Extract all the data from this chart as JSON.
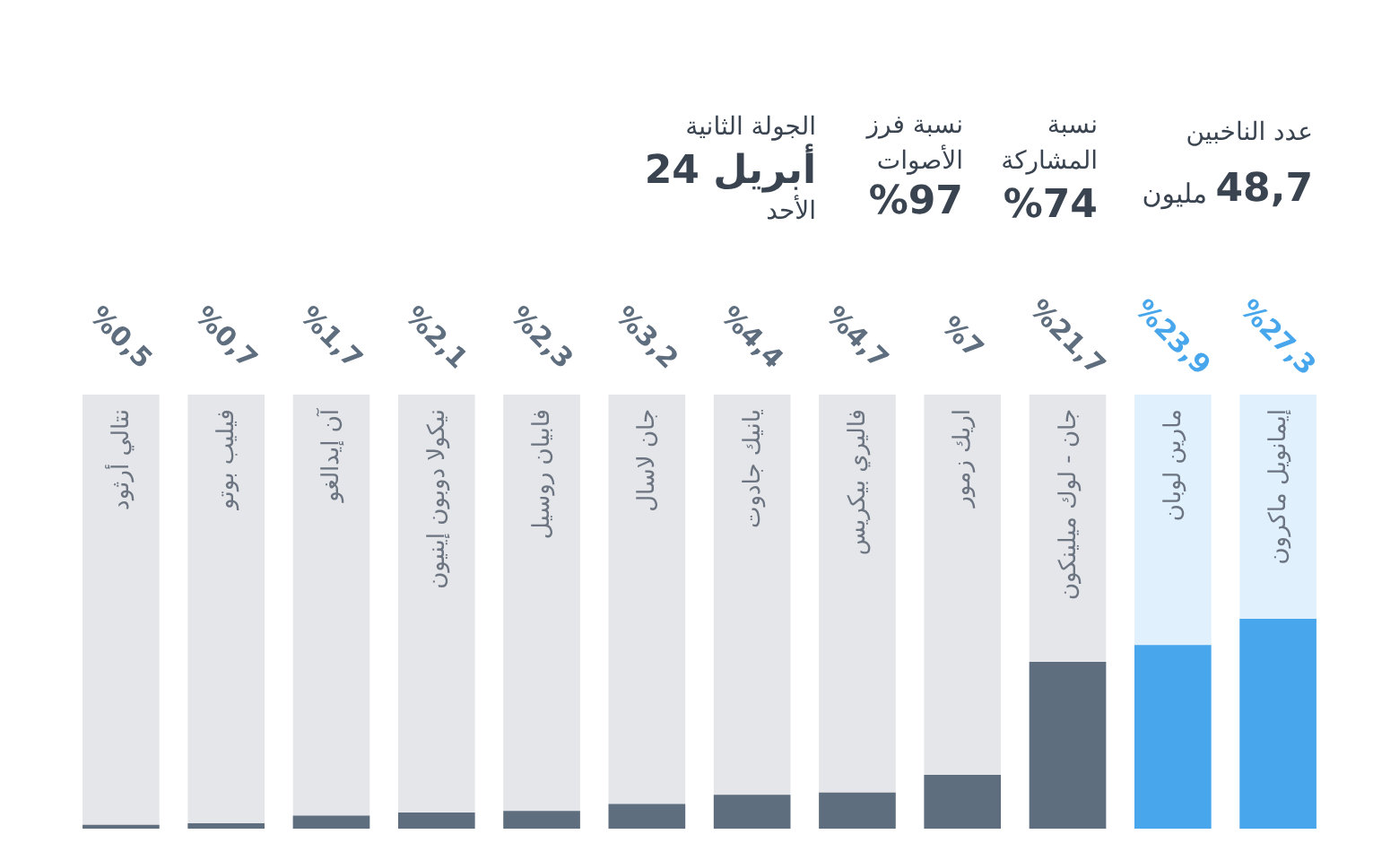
{
  "chart_data": {
    "type": "bar",
    "categories": [
      "نتالي أرثود",
      "فيليب بوتو",
      "آن إيدالغو",
      "نيكولا دوبون إينيون",
      "فابيان روسيل",
      "جان لاسال",
      "يانيك جادوت",
      "فاليري بيكريس",
      "اريك زمور",
      "جان - لوك ميلينكون",
      "مارين لوبان",
      "إيمانويل ماكرون"
    ],
    "values": [
      0.5,
      0.7,
      1.7,
      2.1,
      2.3,
      3.2,
      4.4,
      4.7,
      7,
      21.7,
      23.9,
      27.3
    ],
    "colors": [
      "#5f6e7e",
      "#5f6e7e",
      "#5f6e7e",
      "#5f6e7e",
      "#5f6e7e",
      "#5f6e7e",
      "#5f6e7e",
      "#5f6e7e",
      "#5f6e7e",
      "#5f6e7e",
      "#48a7ec",
      "#48a7ec"
    ],
    "value_labels": [
      "%0,5",
      "%0,7",
      "%1,7",
      "%2,1",
      "%2,3",
      "%3,2",
      "%4,4",
      "%4,7",
      "%7",
      "%21,7",
      "%23,9",
      "%27,3"
    ],
    "annotations": [
      "عدد الناخبين",
      "48,7",
      "مليون",
      "نسبة\nالمشاركة",
      "%74",
      "نسبة فرز\nالأصوات",
      "%97",
      "الجولة الثانية",
      "24 أبريل",
      "الأحد"
    ]
  }
}
